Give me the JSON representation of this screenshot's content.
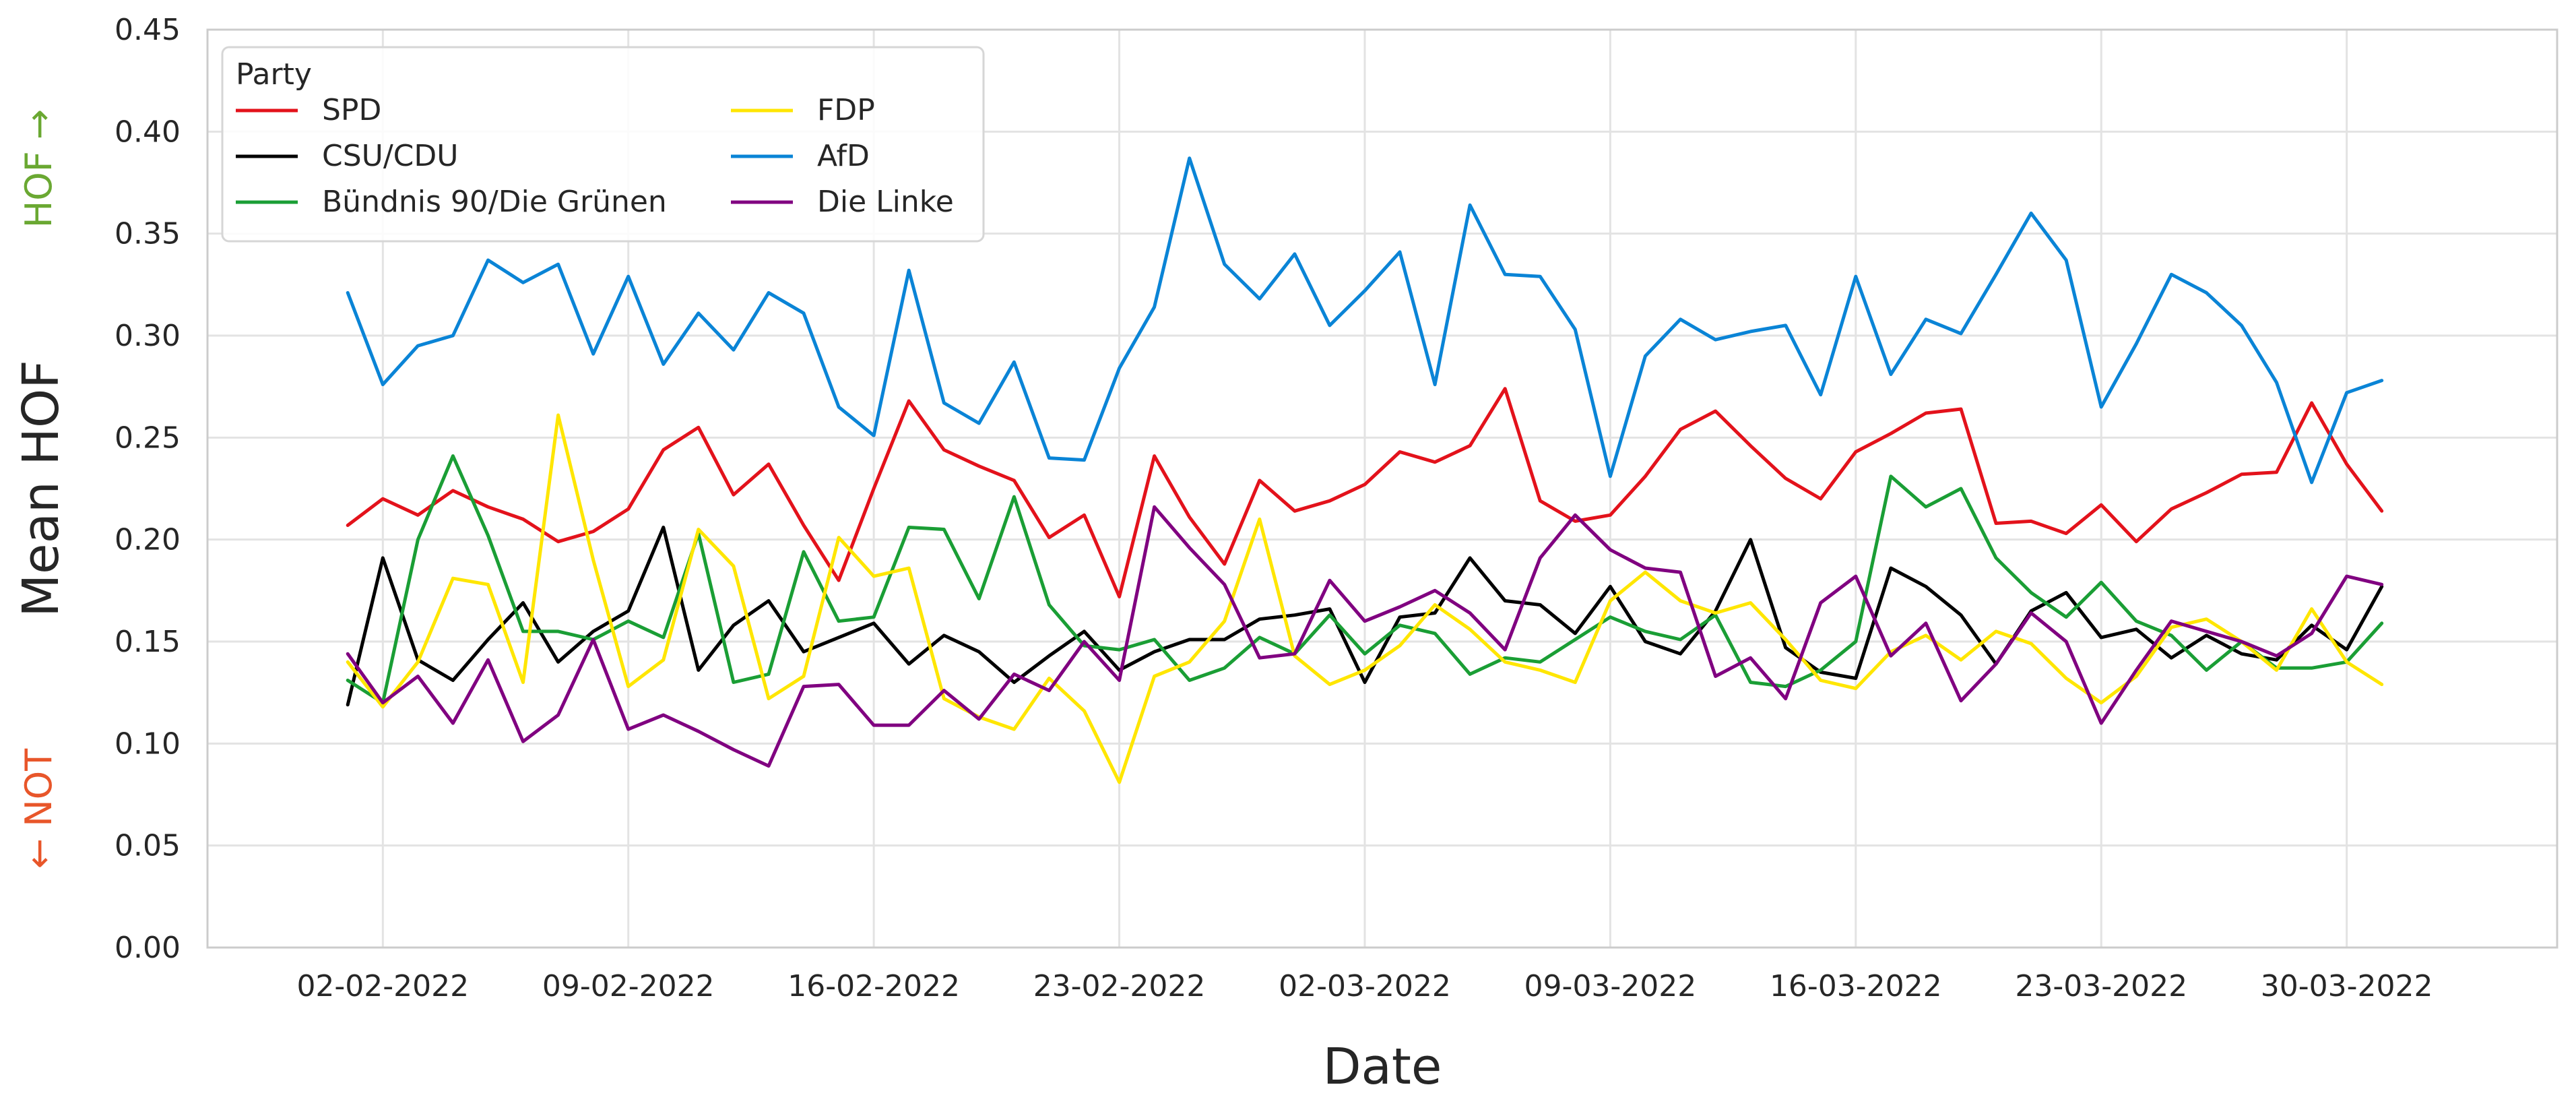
{
  "chart_data": {
    "type": "line",
    "title": "",
    "xlabel": "Date",
    "ylabel": "Mean HOF",
    "side_labels": {
      "top": "HOF →",
      "top_color": "#6aa832",
      "bottom": "← NOT",
      "bottom_color": "#e8562a"
    },
    "xlim": [
      "2022-01-28",
      "2022-04-05"
    ],
    "ylim": [
      0,
      0.45
    ],
    "y_ticks": [
      0.0,
      0.05,
      0.1,
      0.15,
      0.2,
      0.25,
      0.3,
      0.35,
      0.4,
      0.45
    ],
    "y_tick_labels": [
      "0.00",
      "0.05",
      "0.10",
      "0.15",
      "0.20",
      "0.25",
      "0.30",
      "0.35",
      "0.40",
      "0.45"
    ],
    "x_ticks": [
      "2022-02-02",
      "2022-02-09",
      "2022-02-16",
      "2022-02-23",
      "2022-03-02",
      "2022-03-09",
      "2022-03-16",
      "2022-03-23",
      "2022-03-30"
    ],
    "x_tick_labels": [
      "02-02-2022",
      "09-02-2022",
      "16-02-2022",
      "23-02-2022",
      "02-03-2022",
      "09-03-2022",
      "16-03-2022",
      "23-03-2022",
      "30-03-2022"
    ],
    "x_start_date": "2022-02-01",
    "grid": true,
    "legend": {
      "title": "Party",
      "placement": "top-left",
      "columns": 2
    },
    "series": [
      {
        "name": "SPD",
        "color": "#e3121b",
        "values": [
          0.207,
          0.22,
          0.212,
          0.224,
          0.216,
          0.21,
          0.199,
          0.204,
          0.215,
          0.244,
          0.255,
          0.222,
          0.237,
          0.207,
          0.18,
          0.225,
          0.268,
          0.244,
          0.236,
          0.229,
          0.201,
          0.212,
          0.172,
          0.241,
          0.211,
          0.188,
          0.229,
          0.214,
          0.219,
          0.227,
          0.243,
          0.238,
          0.246,
          0.274,
          0.219,
          0.209,
          0.212,
          0.231,
          0.254,
          0.263,
          0.246,
          0.23,
          0.22,
          0.243,
          0.252,
          0.262,
          0.264,
          0.208,
          0.209,
          0.203,
          0.217,
          0.199,
          0.215,
          0.223,
          0.232,
          0.233,
          0.267,
          0.237,
          0.214
        ]
      },
      {
        "name": "CSU/CDU",
        "color": "#000000",
        "values": [
          0.119,
          0.191,
          0.141,
          0.131,
          0.151,
          0.169,
          0.14,
          0.155,
          0.165,
          0.206,
          0.136,
          0.158,
          0.17,
          0.145,
          0.152,
          0.159,
          0.139,
          0.153,
          0.145,
          0.13,
          0.143,
          0.155,
          0.136,
          0.145,
          0.151,
          0.151,
          0.161,
          0.163,
          0.166,
          0.13,
          0.162,
          0.164,
          0.191,
          0.17,
          0.168,
          0.154,
          0.177,
          0.15,
          0.144,
          0.165,
          0.2,
          0.147,
          0.135,
          0.132,
          0.186,
          0.177,
          0.163,
          0.139,
          0.165,
          0.174,
          0.152,
          0.156,
          0.142,
          0.153,
          0.144,
          0.141,
          0.158,
          0.146,
          0.177
        ]
      },
      {
        "name": "Bündnis 90/Die Grünen",
        "color": "#1a9e35",
        "values": [
          0.131,
          0.12,
          0.2,
          0.241,
          0.202,
          0.155,
          0.155,
          0.151,
          0.16,
          0.152,
          0.203,
          0.13,
          0.134,
          0.194,
          0.16,
          0.162,
          0.206,
          0.205,
          0.171,
          0.221,
          0.168,
          0.148,
          0.146,
          0.151,
          0.131,
          0.137,
          0.152,
          0.144,
          0.163,
          0.144,
          0.158,
          0.154,
          0.134,
          0.142,
          0.14,
          0.151,
          0.162,
          0.155,
          0.151,
          0.163,
          0.13,
          0.128,
          0.136,
          0.15,
          0.231,
          0.216,
          0.225,
          0.191,
          0.174,
          0.162,
          0.179,
          0.16,
          0.153,
          0.136,
          0.15,
          0.137,
          0.137,
          0.14,
          0.159
        ]
      },
      {
        "name": "FDP",
        "color": "#ffe600",
        "values": [
          0.14,
          0.118,
          0.14,
          0.181,
          0.178,
          0.13,
          0.261,
          0.19,
          0.128,
          0.141,
          0.205,
          0.187,
          0.122,
          0.133,
          0.201,
          0.182,
          0.186,
          0.122,
          0.113,
          0.107,
          0.132,
          0.116,
          0.081,
          0.133,
          0.14,
          0.16,
          0.21,
          0.143,
          0.129,
          0.136,
          0.148,
          0.168,
          0.156,
          0.14,
          0.136,
          0.13,
          0.17,
          0.184,
          0.17,
          0.164,
          0.169,
          0.151,
          0.131,
          0.127,
          0.145,
          0.153,
          0.141,
          0.155,
          0.149,
          0.132,
          0.12,
          0.133,
          0.157,
          0.161,
          0.15,
          0.136,
          0.166,
          0.14,
          0.129
        ]
      },
      {
        "name": "AfD",
        "color": "#0a84d6",
        "values": [
          0.321,
          0.276,
          0.295,
          0.3,
          0.337,
          0.326,
          0.335,
          0.291,
          0.329,
          0.286,
          0.311,
          0.293,
          0.321,
          0.311,
          0.265,
          0.251,
          0.332,
          0.267,
          0.257,
          0.287,
          0.24,
          0.239,
          0.284,
          0.314,
          0.387,
          0.335,
          0.318,
          0.34,
          0.305,
          0.322,
          0.341,
          0.276,
          0.364,
          0.33,
          0.329,
          0.303,
          0.231,
          0.29,
          0.308,
          0.298,
          0.302,
          0.305,
          0.271,
          0.329,
          0.281,
          0.308,
          0.301,
          0.33,
          0.36,
          0.337,
          0.265,
          0.296,
          0.33,
          0.321,
          0.305,
          0.277,
          0.228,
          0.272,
          0.278
        ]
      },
      {
        "name": "Die Linke",
        "color": "#800080",
        "values": [
          0.144,
          0.12,
          0.133,
          0.11,
          0.141,
          0.101,
          0.114,
          0.151,
          0.107,
          0.114,
          0.106,
          0.097,
          0.089,
          0.128,
          0.129,
          0.109,
          0.109,
          0.126,
          0.112,
          0.134,
          0.126,
          0.15,
          0.131,
          0.216,
          0.196,
          0.178,
          0.142,
          0.144,
          0.18,
          0.16,
          0.167,
          0.175,
          0.164,
          0.146,
          0.191,
          0.212,
          0.195,
          0.186,
          0.184,
          0.133,
          0.142,
          0.122,
          0.169,
          0.182,
          0.143,
          0.159,
          0.121,
          0.139,
          0.164,
          0.15,
          0.11,
          0.136,
          0.16,
          0.155,
          0.15,
          0.143,
          0.154,
          0.182,
          0.178
        ]
      }
    ]
  }
}
